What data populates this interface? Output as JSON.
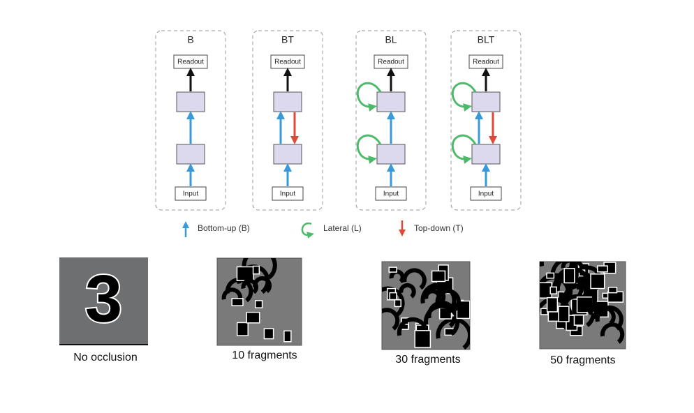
{
  "panels": [
    {
      "title": "B",
      "readout": "Readout",
      "input": "Input",
      "lateral": false,
      "top_down": false
    },
    {
      "title": "BT",
      "readout": "Readout",
      "input": "Input",
      "lateral": false,
      "top_down": true
    },
    {
      "title": "BL",
      "readout": "Readout",
      "input": "Input",
      "lateral": true,
      "top_down": false
    },
    {
      "title": "BLT",
      "readout": "Readout",
      "input": "Input",
      "lateral": true,
      "top_down": true
    }
  ],
  "legend": [
    {
      "label": "Bottom-up (B)",
      "color": "#3a9ad9"
    },
    {
      "label": "Lateral (L)",
      "color": "#4cba6a"
    },
    {
      "label": "Top-down (T)",
      "color": "#e0483a"
    }
  ],
  "examples": [
    {
      "caption": "No occlusion",
      "digit": "3"
    },
    {
      "caption": "10 fragments"
    },
    {
      "caption": "30 fragments"
    },
    {
      "caption": "50 fragments"
    }
  ]
}
